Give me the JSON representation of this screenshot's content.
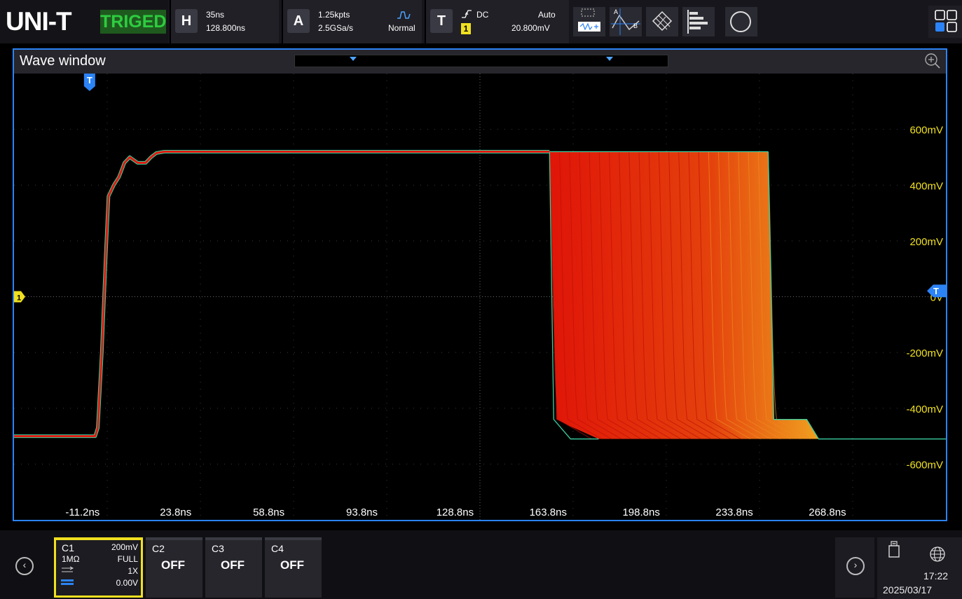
{
  "header": {
    "brand": "UNI-T",
    "trigger_state": "TRIGED",
    "horizontal": {
      "key": "H",
      "timebase": "35ns",
      "position": "128.800ns"
    },
    "acquire": {
      "key": "A",
      "points": "1.25kpts",
      "sample_rate": "2.5GSa/s",
      "mode": "Normal"
    },
    "trigger": {
      "key": "T",
      "coupling": "DC",
      "sweep": "Auto",
      "source": "1",
      "level": "20.800mV"
    }
  },
  "wave_window": {
    "title": "Wave window",
    "y_labels": [
      "600mV",
      "400mV",
      "200mV",
      "0V",
      "-200mV",
      "-400mV",
      "-600mV"
    ],
    "x_labels": [
      "-11.2ns",
      "23.8ns",
      "58.8ns",
      "93.8ns",
      "128.8ns",
      "163.8ns",
      "198.8ns",
      "233.8ns",
      "268.8ns"
    ],
    "channel_marker": "1",
    "trigger_marker": "T"
  },
  "chart_data": {
    "type": "line",
    "xlabel": "",
    "ylabel": "",
    "x_unit": "ns",
    "y_unit": "mV",
    "xlim": [
      -37.5,
      312.8
    ],
    "ylim": [
      -800,
      800
    ],
    "grid": true,
    "series": [
      {
        "name": "",
        "x": [
          -37.5,
          -28,
          -20,
          -11.2,
          -7,
          -6,
          -4.5,
          -3,
          -2,
          0,
          2,
          4,
          6,
          9,
          12,
          14,
          16,
          19,
          23.8,
          30,
          58.8,
          93.8,
          128.8,
          163.8
        ],
        "y": [
          -500,
          -500,
          -500,
          -500,
          -500,
          -470,
          -200,
          150,
          360,
          400,
          430,
          480,
          500,
          480,
          480,
          500,
          515,
          520,
          520,
          520,
          520,
          520,
          520,
          520
        ]
      }
    ],
    "persistence_band": {
      "fall_start_x": [
        163.8,
        246
      ],
      "high_level": 520,
      "shelf_level": -440,
      "low_level": -510
    }
  },
  "bottom": {
    "ch1": {
      "name": "C1",
      "scale": "200mV",
      "impedance": "1MΩ",
      "bandwidth": "FULL",
      "probe": "1X",
      "offset": "0.00V"
    },
    "ch2": {
      "name": "C2",
      "state": "OFF"
    },
    "ch3": {
      "name": "C3",
      "state": "OFF"
    },
    "ch4": {
      "name": "C4",
      "state": "OFF"
    },
    "time": "17:22",
    "date": "2025/03/17"
  },
  "colors": {
    "accent": "#2b83f6",
    "ch1": "#f0e020",
    "trace": "#e01a10",
    "triged": "#2ecc40"
  }
}
